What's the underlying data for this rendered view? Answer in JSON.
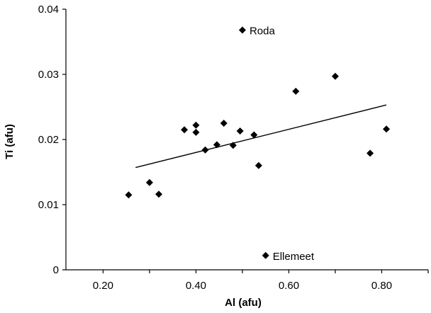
{
  "chart_data": {
    "type": "scatter",
    "title": "",
    "xlabel": "Al (afu)",
    "ylabel": "Ti (afu)",
    "xlim": [
      0.12,
      0.9
    ],
    "ylim": [
      0,
      0.04
    ],
    "xticks": [
      0.2,
      0.4,
      0.6,
      0.8
    ],
    "xtick_labels": [
      "0.20",
      "0.40",
      "0.60",
      "0.80"
    ],
    "yticks": [
      0,
      0.01,
      0.02,
      0.03,
      0.04
    ],
    "ytick_labels": [
      "0",
      "0.01",
      "0.02",
      "0.03",
      "0.04"
    ],
    "grid": false,
    "legend": "none",
    "marker": "diamond",
    "marker_color": "#000000",
    "series": [
      {
        "points": [
          {
            "x": 0.255,
            "y": 0.0115
          },
          {
            "x": 0.3,
            "y": 0.0134
          },
          {
            "x": 0.32,
            "y": 0.0116
          },
          {
            "x": 0.375,
            "y": 0.0215
          },
          {
            "x": 0.4,
            "y": 0.0222
          },
          {
            "x": 0.4,
            "y": 0.0211
          },
          {
            "x": 0.42,
            "y": 0.0184
          },
          {
            "x": 0.445,
            "y": 0.0192
          },
          {
            "x": 0.46,
            "y": 0.0225
          },
          {
            "x": 0.48,
            "y": 0.0191
          },
          {
            "x": 0.495,
            "y": 0.0213
          },
          {
            "x": 0.525,
            "y": 0.0207
          },
          {
            "x": 0.535,
            "y": 0.016
          },
          {
            "x": 0.615,
            "y": 0.0274
          },
          {
            "x": 0.7,
            "y": 0.0297
          },
          {
            "x": 0.775,
            "y": 0.0179
          },
          {
            "x": 0.81,
            "y": 0.0216
          },
          {
            "x": 0.5,
            "y": 0.0368
          },
          {
            "x": 0.55,
            "y": 0.0022
          }
        ]
      }
    ],
    "trendline": {
      "x": [
        0.27,
        0.81
      ],
      "y": [
        0.0157,
        0.0253
      ]
    },
    "annotations": [
      {
        "text": "Roda",
        "x": 0.5,
        "y": 0.0368
      },
      {
        "text": "Ellemeet",
        "x": 0.55,
        "y": 0.0022
      }
    ]
  }
}
